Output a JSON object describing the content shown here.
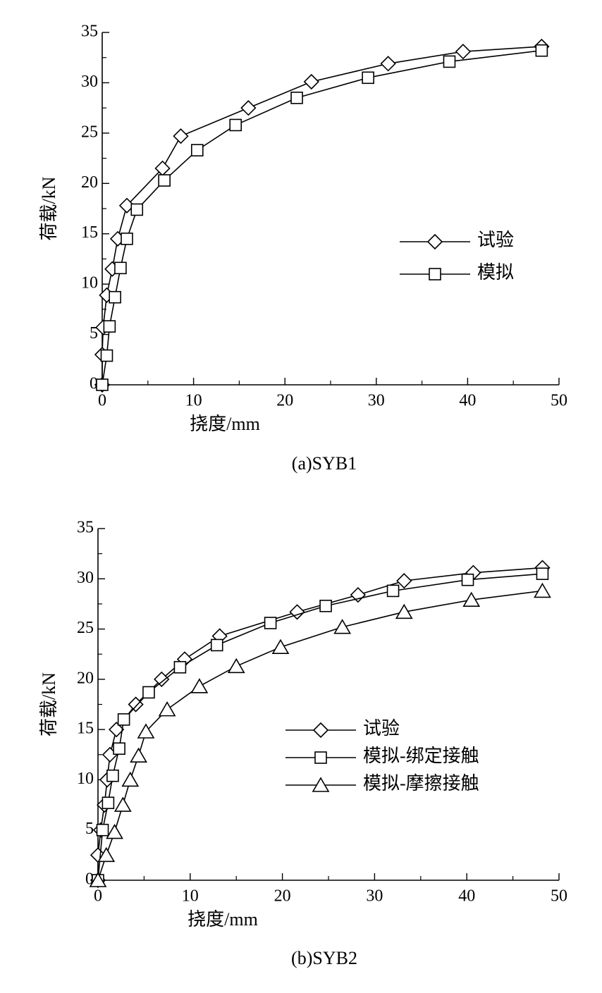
{
  "chart_data": [
    {
      "type": "line",
      "caption": "(a)SYB1",
      "xlabel": "挠度/mm",
      "ylabel": "荷载/kN",
      "xlim": [
        0,
        50
      ],
      "ylim": [
        0,
        35
      ],
      "xticks": [
        0,
        10,
        20,
        30,
        40,
        50
      ],
      "yticks": [
        0,
        5,
        10,
        15,
        20,
        25,
        30,
        35
      ],
      "xminorticks": [
        5,
        15,
        25,
        35,
        45
      ],
      "yminorticks": [
        2.5,
        7.5,
        12.5,
        17.5,
        22.5,
        27.5,
        32.5
      ],
      "series": [
        {
          "name": "试验",
          "color": "#000000",
          "marker": "diamond",
          "x": [
            0,
            0,
            0.1,
            0.5,
            1.1,
            1.7,
            2.7,
            6.6,
            8.6,
            16.0,
            22.9,
            31.3,
            39.5,
            48.1
          ],
          "values": [
            0,
            3.0,
            5.7,
            8.9,
            11.5,
            14.5,
            17.8,
            21.5,
            24.7,
            27.5,
            30.1,
            31.9,
            33.1,
            33.6
          ]
        },
        {
          "name": "模拟",
          "color": "#000000",
          "marker": "square",
          "x": [
            0,
            0.5,
            0.8,
            1.4,
            2.0,
            2.7,
            3.8,
            6.8,
            10.4,
            14.6,
            21.3,
            29.1,
            38.0,
            48.1
          ],
          "values": [
            0,
            2.9,
            5.8,
            8.7,
            11.6,
            14.5,
            17.4,
            20.3,
            23.3,
            25.8,
            28.5,
            30.5,
            32.1,
            33.2
          ]
        }
      ]
    },
    {
      "type": "line",
      "caption": "(b)SYB2",
      "xlabel": "挠度/mm",
      "ylabel": "荷载/kN",
      "xlim": [
        0,
        50
      ],
      "ylim": [
        0,
        35
      ],
      "xticks": [
        0,
        10,
        20,
        30,
        40,
        50
      ],
      "yticks": [
        0,
        5,
        10,
        15,
        20,
        25,
        30,
        35
      ],
      "xminorticks": [
        5,
        15,
        25,
        35,
        45
      ],
      "yminorticks": [
        2.5,
        7.5,
        12.5,
        17.5,
        22.5,
        27.5,
        32.5
      ],
      "series": [
        {
          "name": "试验",
          "color": "#000000",
          "marker": "diamond",
          "x": [
            0,
            0,
            0.3,
            0.7,
            1.0,
            1.3,
            2.0,
            4.1,
            6.9,
            9.4,
            13.2,
            21.6,
            28.2,
            33.2,
            40.7,
            48.2
          ],
          "values": [
            0,
            2.5,
            5.0,
            7.5,
            10.0,
            12.5,
            15.0,
            17.5,
            20.0,
            22.0,
            24.3,
            26.7,
            28.4,
            29.8,
            30.6,
            31.1
          ]
        },
        {
          "name": "模拟-绑定接触",
          "color": "#000000",
          "marker": "square",
          "x": [
            0,
            0.5,
            1.1,
            1.6,
            2.3,
            2.8,
            5.5,
            8.9,
            12.9,
            18.7,
            24.7,
            32.0,
            40.1,
            48.2
          ],
          "values": [
            0,
            5.0,
            7.7,
            10.4,
            13.1,
            16.0,
            18.7,
            21.2,
            23.4,
            25.6,
            27.3,
            28.8,
            29.9,
            30.5
          ]
        },
        {
          "name": "模拟-摩擦接触",
          "color": "#000000",
          "marker": "triangle",
          "x": [
            0,
            0.9,
            1.8,
            2.7,
            3.5,
            4.4,
            5.2,
            7.5,
            11.0,
            15.0,
            19.8,
            26.5,
            33.2,
            40.5,
            48.2
          ],
          "values": [
            0,
            2.5,
            4.8,
            7.5,
            10.0,
            12.4,
            14.8,
            17.0,
            19.3,
            21.3,
            23.2,
            25.2,
            26.7,
            27.9,
            28.8
          ]
        }
      ]
    }
  ]
}
